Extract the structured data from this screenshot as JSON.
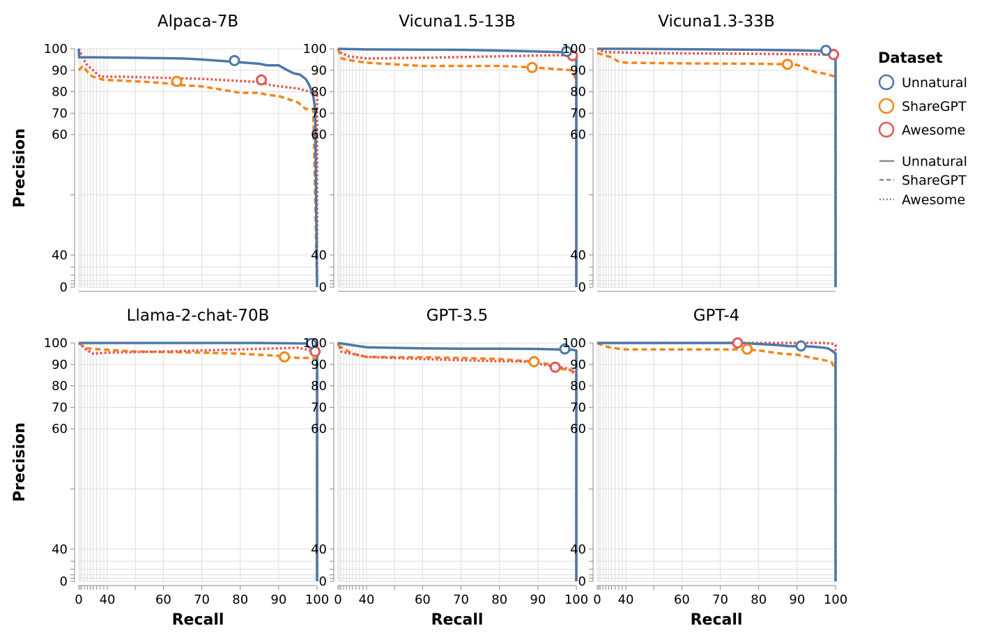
{
  "chart_data": {
    "type": "line",
    "xlabel": "Recall",
    "ylabel": "Precision",
    "x_ticks": [
      0,
      40,
      60,
      70,
      80,
      90,
      100
    ],
    "y_ticks": [
      0,
      40,
      60,
      70,
      80,
      90,
      100
    ],
    "xlim": [
      0,
      100
    ],
    "ylim": [
      0,
      100
    ],
    "colors": {
      "Unnatural": "#4c78a8",
      "ShareGPT": "#f58518",
      "Awesome": "#e45756"
    },
    "legend": {
      "title": "Dataset",
      "color_entries": [
        "Unnatural",
        "ShareGPT",
        "Awesome"
      ],
      "dash_entries": [
        "Unnatural",
        "ShareGPT",
        "Awesome"
      ]
    },
    "panels": [
      {
        "title": "Alpaca-7B",
        "series": {
          "Unnatural": [
            [
              0,
              100
            ],
            [
              0.5,
              96
            ],
            [
              20,
              96
            ],
            [
              50,
              95.8
            ],
            [
              65,
              95.5
            ],
            [
              70,
              95
            ],
            [
              78,
              94
            ],
            [
              85,
              93
            ],
            [
              87,
              92.3
            ],
            [
              90,
              92.3
            ],
            [
              92,
              90.3
            ],
            [
              94,
              88.5
            ],
            [
              95.5,
              88
            ],
            [
              97,
              86
            ],
            [
              98,
              83
            ],
            [
              99,
              78
            ],
            [
              99.5,
              72
            ],
            [
              100,
              0
            ]
          ],
          "ShareGPT": [
            [
              0,
              90
            ],
            [
              3,
              91
            ],
            [
              6,
              92
            ],
            [
              15,
              88
            ],
            [
              20,
              87
            ],
            [
              35,
              85.5
            ],
            [
              45,
              85.2
            ],
            [
              55,
              84.5
            ],
            [
              60,
              84
            ],
            [
              65,
              83
            ],
            [
              70,
              82.5
            ],
            [
              75,
              81
            ],
            [
              80,
              79.5
            ],
            [
              85,
              79.5
            ],
            [
              87,
              78.5
            ],
            [
              90,
              78
            ],
            [
              95,
              75
            ],
            [
              97,
              72
            ],
            [
              99,
              72
            ],
            [
              100,
              0
            ]
          ],
          "Awesome": [
            [
              0,
              100
            ],
            [
              10,
              93
            ],
            [
              20,
              90
            ],
            [
              30,
              87
            ],
            [
              45,
              87
            ],
            [
              60,
              86.5
            ],
            [
              70,
              86
            ],
            [
              80,
              85
            ],
            [
              85,
              84.5
            ],
            [
              88,
              83
            ],
            [
              95,
              81.5
            ],
            [
              97,
              80.5
            ],
            [
              100,
              79
            ],
            [
              100,
              0
            ]
          ]
        },
        "markers": {
          "Unnatural": [
            78.5,
            94.5
          ],
          "ShareGPT": [
            63.5,
            84.8
          ],
          "Awesome": [
            85.5,
            85.5
          ]
        }
      },
      {
        "title": "Vicuna1.5-13B",
        "series": {
          "Unnatural": [
            [
              0,
              100
            ],
            [
              40,
              99.7
            ],
            [
              70,
              99.5
            ],
            [
              85,
              99
            ],
            [
              95,
              98.5
            ],
            [
              99,
              98.3
            ],
            [
              100,
              97
            ],
            [
              100,
              0
            ]
          ],
          "ShareGPT": [
            [
              0,
              100
            ],
            [
              5,
              95.5
            ],
            [
              20,
              94.5
            ],
            [
              40,
              93.5
            ],
            [
              60,
              92
            ],
            [
              80,
              92
            ],
            [
              89,
              91.3
            ],
            [
              95,
              90.5
            ],
            [
              99,
              90
            ],
            [
              100,
              85
            ],
            [
              100,
              0
            ]
          ],
          "Awesome": [
            [
              0,
              100
            ],
            [
              5,
              98
            ],
            [
              15,
              96.5
            ],
            [
              40,
              95.5
            ],
            [
              60,
              95.8
            ],
            [
              80,
              96.5
            ],
            [
              95,
              97
            ],
            [
              100,
              97
            ],
            [
              100,
              0
            ]
          ]
        },
        "markers": {
          "Unnatural": [
            97.5,
            98.8
          ],
          "ShareGPT": [
            88.5,
            91.3
          ],
          "Awesome": [
            99,
            96.8
          ]
        }
      },
      {
        "title": "Vicuna1.3-33B",
        "series": {
          "Unnatural": [
            [
              0,
              100
            ],
            [
              20,
              100
            ],
            [
              40,
              100
            ],
            [
              60,
              99.8
            ],
            [
              80,
              99.5
            ],
            [
              90,
              99.3
            ],
            [
              97,
              99
            ],
            [
              100,
              98
            ],
            [
              100,
              0
            ]
          ],
          "ShareGPT": [
            [
              0,
              98
            ],
            [
              10,
              97
            ],
            [
              20,
              96
            ],
            [
              30,
              94
            ],
            [
              40,
              93.5
            ],
            [
              60,
              93.2
            ],
            [
              80,
              93
            ],
            [
              87,
              92.8
            ],
            [
              90,
              92.5
            ],
            [
              95,
              89
            ],
            [
              97,
              88.5
            ],
            [
              100,
              87
            ],
            [
              100,
              0
            ]
          ],
          "Awesome": [
            [
              0,
              100
            ],
            [
              10,
              98.5
            ],
            [
              30,
              98.3
            ],
            [
              50,
              98
            ],
            [
              70,
              97.8
            ],
            [
              90,
              97.5
            ],
            [
              100,
              97.3
            ],
            [
              100,
              0
            ]
          ]
        },
        "markers": {
          "Unnatural": [
            97.5,
            99.3
          ],
          "ShareGPT": [
            87.5,
            92.8
          ],
          "Awesome": [
            99.5,
            97.3
          ]
        }
      },
      {
        "title": "Llama-2-chat-70B",
        "series": {
          "Unnatural": [
            [
              0,
              100
            ],
            [
              30,
              100
            ],
            [
              60,
              100
            ],
            [
              85,
              100
            ],
            [
              95,
              99.8
            ],
            [
              98,
              99.7
            ],
            [
              100,
              99.5
            ],
            [
              100,
              0
            ]
          ],
          "ShareGPT": [
            [
              0,
              100
            ],
            [
              10,
              97.5
            ],
            [
              30,
              97
            ],
            [
              50,
              96
            ],
            [
              70,
              95.5
            ],
            [
              80,
              95
            ],
            [
              90,
              94
            ],
            [
              92,
              93.5
            ],
            [
              95,
              93
            ],
            [
              98,
              93
            ],
            [
              100,
              92.5
            ],
            [
              100,
              0
            ]
          ],
          "Awesome": [
            [
              0,
              100
            ],
            [
              10,
              97
            ],
            [
              20,
              95
            ],
            [
              40,
              95.5
            ],
            [
              60,
              96
            ],
            [
              80,
              97
            ],
            [
              90,
              97.5
            ],
            [
              95,
              97.8
            ],
            [
              97,
              97
            ],
            [
              99,
              96
            ],
            [
              100,
              96
            ],
            [
              100,
              0
            ]
          ]
        },
        "markers": {
          "Unnatural": [
            98.5,
            99.8
          ],
          "ShareGPT": [
            91.5,
            93.5
          ],
          "Awesome": [
            99.5,
            96
          ]
        }
      },
      {
        "title": "GPT-3.5",
        "series": {
          "Unnatural": [
            [
              0,
              100
            ],
            [
              20,
              99
            ],
            [
              40,
              98
            ],
            [
              60,
              97.5
            ],
            [
              70,
              97.3
            ],
            [
              80,
              97.3
            ],
            [
              90,
              97.2
            ],
            [
              95,
              97
            ],
            [
              97,
              96.8
            ],
            [
              99,
              96.8
            ],
            [
              100,
              96.5
            ],
            [
              100,
              85
            ],
            [
              100,
              0
            ]
          ],
          "ShareGPT": [
            [
              0,
              99
            ],
            [
              5,
              98
            ],
            [
              20,
              95
            ],
            [
              40,
              93.5
            ],
            [
              60,
              93.3
            ],
            [
              70,
              93
            ],
            [
              80,
              92.5
            ],
            [
              85,
              91.8
            ],
            [
              89,
              91.3
            ],
            [
              93,
              90
            ],
            [
              96,
              88
            ],
            [
              99,
              87
            ],
            [
              100,
              85
            ],
            [
              100,
              0
            ]
          ],
          "Awesome": [
            [
              0,
              100
            ],
            [
              5,
              95.8
            ],
            [
              20,
              95
            ],
            [
              40,
              93.5
            ],
            [
              60,
              92.5
            ],
            [
              80,
              91.5
            ],
            [
              88,
              91.3
            ],
            [
              91,
              90
            ],
            [
              95,
              89
            ],
            [
              98,
              88
            ],
            [
              100,
              85
            ],
            [
              100,
              0
            ]
          ]
        },
        "markers": {
          "Unnatural": [
            97,
            97.2
          ],
          "ShareGPT": [
            89,
            91.3
          ],
          "Awesome": [
            94.5,
            88.7
          ]
        }
      },
      {
        "title": "GPT-4",
        "series": {
          "Unnatural": [
            [
              0,
              100
            ],
            [
              30,
              100
            ],
            [
              60,
              100
            ],
            [
              75,
              100
            ],
            [
              80,
              99.5
            ],
            [
              85,
              99
            ],
            [
              88,
              98.5
            ],
            [
              91,
              98.5
            ],
            [
              94,
              98.3
            ],
            [
              96,
              98
            ],
            [
              98,
              97.5
            ],
            [
              99,
              96.5
            ],
            [
              100,
              95
            ],
            [
              100,
              0
            ]
          ],
          "ShareGPT": [
            [
              0,
              100
            ],
            [
              10,
              98.5
            ],
            [
              20,
              97.8
            ],
            [
              30,
              97.3
            ],
            [
              40,
              97
            ],
            [
              60,
              97
            ],
            [
              70,
              97
            ],
            [
              77,
              97
            ],
            [
              80,
              96.5
            ],
            [
              86,
              95
            ],
            [
              90,
              94.5
            ],
            [
              94,
              93
            ],
            [
              97,
              92
            ],
            [
              99,
              91
            ],
            [
              100,
              87
            ],
            [
              100,
              0
            ]
          ],
          "Awesome": [
            [
              0,
              100
            ],
            [
              30,
              100
            ],
            [
              60,
              100
            ],
            [
              75,
              100
            ],
            [
              90,
              100
            ],
            [
              97,
              100
            ],
            [
              99.5,
              99.5
            ],
            [
              100,
              99
            ],
            [
              100,
              0
            ]
          ]
        },
        "markers": {
          "Unnatural": [
            91,
            98.6
          ],
          "ShareGPT": [
            77,
            97.1
          ],
          "Awesome": [
            74.5,
            100
          ]
        }
      }
    ]
  }
}
